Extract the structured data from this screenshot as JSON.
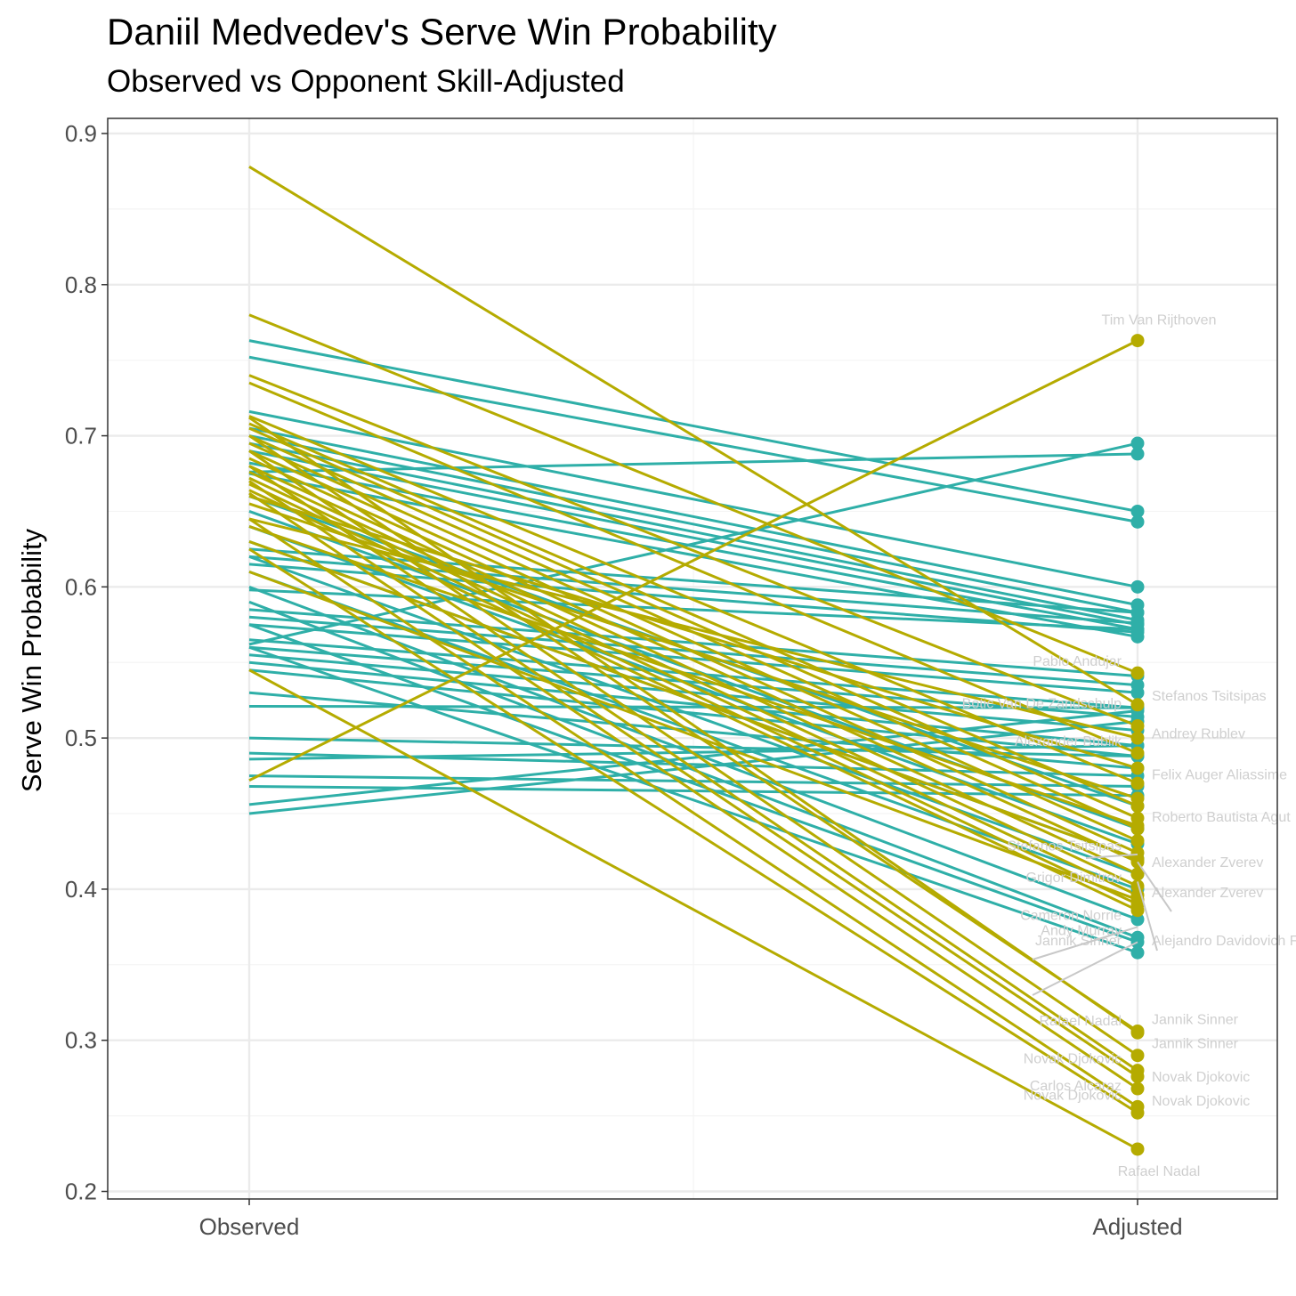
{
  "chart_data": {
    "type": "line",
    "title": "Daniil Medvedev's Serve Win Probability",
    "subtitle": "Observed vs Opponent Skill-Adjusted",
    "xlabel": "",
    "ylabel": "Serve Win Probability",
    "categories": [
      "Observed",
      "Adjusted"
    ],
    "ylim": [
      0.195,
      0.91
    ],
    "yticks": [
      "0.2",
      "0.3",
      "0.4",
      "0.5",
      "0.6",
      "0.7",
      "0.8",
      "0.9"
    ],
    "grid": true,
    "legend": "none",
    "colors": {
      "group_a": "#b5ab00",
      "group_b": "#2fafa8",
      "label": "#cfcfcf",
      "panel_border": "#333333",
      "grid_major": "#ebebeb",
      "grid_minor": "#f4f4f4"
    },
    "series": [
      {
        "name": "Tim Van Rijthoven",
        "group": "a",
        "values": [
          0.472,
          0.763
        ]
      },
      {
        "name": "g1",
        "group": "a",
        "values": [
          0.878,
          0.522
        ]
      },
      {
        "name": "g2",
        "group": "a",
        "values": [
          0.78,
          0.543
        ]
      },
      {
        "name": "g3",
        "group": "a",
        "values": [
          0.74,
          0.508
        ]
      },
      {
        "name": "g4",
        "group": "a",
        "values": [
          0.735,
          0.49
        ]
      },
      {
        "name": "g5",
        "group": "a",
        "values": [
          0.713,
          0.47
        ]
      },
      {
        "name": "g6",
        "group": "a",
        "values": [
          0.708,
          0.455
        ]
      },
      {
        "name": "g7",
        "group": "a",
        "values": [
          0.705,
          0.447
        ]
      },
      {
        "name": "g8",
        "group": "a",
        "values": [
          0.7,
          0.44
        ]
      },
      {
        "name": "g9",
        "group": "a",
        "values": [
          0.695,
          0.432
        ]
      },
      {
        "name": "g10",
        "group": "a",
        "values": [
          0.69,
          0.424
        ]
      },
      {
        "name": "g11",
        "group": "a",
        "values": [
          0.685,
          0.418
        ]
      },
      {
        "name": "g12",
        "group": "a",
        "values": [
          0.68,
          0.41
        ]
      },
      {
        "name": "g13",
        "group": "a",
        "values": [
          0.676,
          0.402
        ]
      },
      {
        "name": "g14",
        "group": "a",
        "values": [
          0.672,
          0.396
        ]
      },
      {
        "name": "g15",
        "group": "a",
        "values": [
          0.668,
          0.39
        ]
      },
      {
        "name": "g16",
        "group": "a",
        "values": [
          0.664,
          0.386
        ]
      },
      {
        "name": "g17",
        "group": "a",
        "values": [
          0.66,
          0.48
        ]
      },
      {
        "name": "g18",
        "group": "a",
        "values": [
          0.655,
          0.46
        ]
      },
      {
        "name": "g19",
        "group": "a",
        "values": [
          0.645,
          0.5
        ]
      },
      {
        "name": "g20",
        "group": "a",
        "values": [
          0.64,
          0.442
        ]
      },
      {
        "name": "g21",
        "group": "a",
        "values": [
          0.63,
          0.42
        ]
      },
      {
        "name": "Rafael Nadal (1)",
        "group": "a",
        "values": [
          0.712,
          0.305
        ]
      },
      {
        "name": "Jannik Sinner",
        "group": "a",
        "values": [
          0.7,
          0.306
        ]
      },
      {
        "name": "Novak Djokovic",
        "group": "a",
        "values": [
          0.69,
          0.29
        ]
      },
      {
        "name": "Jannik Sinner (2)",
        "group": "a",
        "values": [
          0.68,
          0.28
        ]
      },
      {
        "name": "Novak Djokovic (2)",
        "group": "a",
        "values": [
          0.67,
          0.276
        ]
      },
      {
        "name": "Carlos Alcaraz",
        "group": "a",
        "values": [
          0.662,
          0.268
        ]
      },
      {
        "name": "Novak Djokovic (3)",
        "group": "a",
        "values": [
          0.645,
          0.256
        ]
      },
      {
        "name": "Novak Djokovic (4)",
        "group": "a",
        "values": [
          0.625,
          0.252
        ]
      },
      {
        "name": "Rafael Nadal",
        "group": "a",
        "values": [
          0.545,
          0.228
        ]
      },
      {
        "name": "Alejandro Davidovich Fokina",
        "group": "a",
        "values": [
          0.61,
          0.393
        ]
      },
      {
        "name": "t1",
        "group": "b",
        "values": [
          0.763,
          0.65
        ]
      },
      {
        "name": "t2",
        "group": "b",
        "values": [
          0.752,
          0.643
        ]
      },
      {
        "name": "t3",
        "group": "b",
        "values": [
          0.676,
          0.688
        ]
      },
      {
        "name": "t4",
        "group": "b",
        "values": [
          0.562,
          0.695
        ]
      },
      {
        "name": "t5",
        "group": "b",
        "values": [
          0.716,
          0.6
        ]
      },
      {
        "name": "t6",
        "group": "b",
        "values": [
          0.705,
          0.588
        ]
      },
      {
        "name": "t7",
        "group": "b",
        "values": [
          0.7,
          0.583
        ]
      },
      {
        "name": "t8",
        "group": "b",
        "values": [
          0.695,
          0.578
        ]
      },
      {
        "name": "t9",
        "group": "b",
        "values": [
          0.69,
          0.575
        ]
      },
      {
        "name": "t10",
        "group": "b",
        "values": [
          0.682,
          0.572
        ]
      },
      {
        "name": "t11",
        "group": "b",
        "values": [
          0.675,
          0.567
        ]
      },
      {
        "name": "t12",
        "group": "b",
        "values": [
          0.625,
          0.583
        ]
      },
      {
        "name": "t13",
        "group": "b",
        "values": [
          0.62,
          0.576
        ]
      },
      {
        "name": "t14",
        "group": "b",
        "values": [
          0.615,
          0.57
        ]
      },
      {
        "name": "t15",
        "group": "b",
        "values": [
          0.598,
          0.572
        ]
      },
      {
        "name": "t16",
        "group": "b",
        "values": [
          0.585,
          0.541
        ]
      },
      {
        "name": "t17",
        "group": "b",
        "values": [
          0.58,
          0.535
        ]
      },
      {
        "name": "t18",
        "group": "b",
        "values": [
          0.575,
          0.53
        ]
      },
      {
        "name": "t19",
        "group": "b",
        "values": [
          0.565,
          0.52
        ]
      },
      {
        "name": "t20",
        "group": "b",
        "values": [
          0.56,
          0.514
        ]
      },
      {
        "name": "t21",
        "group": "b",
        "values": [
          0.555,
          0.505
        ]
      },
      {
        "name": "t22",
        "group": "b",
        "values": [
          0.55,
          0.495
        ]
      },
      {
        "name": "t23",
        "group": "b",
        "values": [
          0.545,
          0.488
        ]
      },
      {
        "name": "t24",
        "group": "b",
        "values": [
          0.53,
          0.48
        ]
      },
      {
        "name": "t25",
        "group": "b",
        "values": [
          0.521,
          0.52
        ]
      },
      {
        "name": "t26",
        "group": "b",
        "values": [
          0.5,
          0.488
        ]
      },
      {
        "name": "t27",
        "group": "b",
        "values": [
          0.49,
          0.475
        ]
      },
      {
        "name": "t28",
        "group": "b",
        "values": [
          0.486,
          0.495
        ]
      },
      {
        "name": "t29",
        "group": "b",
        "values": [
          0.475,
          0.468
        ]
      },
      {
        "name": "t30",
        "group": "b",
        "values": [
          0.468,
          0.462
        ]
      },
      {
        "name": "t31",
        "group": "b",
        "values": [
          0.456,
          0.518
        ]
      },
      {
        "name": "t32",
        "group": "b",
        "values": [
          0.45,
          0.511
        ]
      },
      {
        "name": "t33",
        "group": "b",
        "values": [
          0.66,
          0.455
        ]
      },
      {
        "name": "t34",
        "group": "b",
        "values": [
          0.65,
          0.44
        ]
      },
      {
        "name": "t35",
        "group": "b",
        "values": [
          0.64,
          0.43
        ]
      },
      {
        "name": "t36",
        "group": "b",
        "values": [
          0.63,
          0.42
        ]
      },
      {
        "name": "t37",
        "group": "b",
        "values": [
          0.62,
          0.41
        ]
      },
      {
        "name": "t38",
        "group": "b",
        "values": [
          0.61,
          0.4
        ]
      },
      {
        "name": "t39",
        "group": "b",
        "values": [
          0.6,
          0.38
        ]
      },
      {
        "name": "t40",
        "group": "b",
        "values": [
          0.59,
          0.368
        ]
      },
      {
        "name": "t41",
        "group": "b",
        "values": [
          0.575,
          0.365
        ]
      },
      {
        "name": "t42",
        "group": "b",
        "values": [
          0.56,
          0.358
        ]
      }
    ],
    "annotations": [
      {
        "text": "Tim Van Rijthoven",
        "y": 0.763,
        "side": "right"
      },
      {
        "text": "Pablo Andujar",
        "y": 0.543,
        "side": "left"
      },
      {
        "text": "Stefanos Tsitsipas",
        "y": 0.52,
        "side": "right"
      },
      {
        "text": "Botic Van De Zandschulp",
        "y": 0.515,
        "side": "left"
      },
      {
        "text": "Andrey Rublev",
        "y": 0.495,
        "side": "right"
      },
      {
        "text": "Alexander Bublik",
        "y": 0.49,
        "side": "left"
      },
      {
        "text": "Felix Auger Aliassime",
        "y": 0.468,
        "side": "right"
      },
      {
        "text": "Roberto Bautista Agut",
        "y": 0.44,
        "side": "right"
      },
      {
        "text": "Stefanos Tsitsipas",
        "y": 0.421,
        "side": "left"
      },
      {
        "text": "Alexander Zverev",
        "y": 0.41,
        "side": "right"
      },
      {
        "text": "Grigor Dimitrov",
        "y": 0.4,
        "side": "left"
      },
      {
        "text": "Alexander Zverev",
        "y": 0.39,
        "side": "right"
      },
      {
        "text": "Cameron Norrie",
        "y": 0.375,
        "side": "left"
      },
      {
        "text": "Andy Murray",
        "y": 0.365,
        "side": "left"
      },
      {
        "text": "Alejandro Davidovich Fokina",
        "y": 0.358,
        "side": "right"
      },
      {
        "text": "Jannik Sinner",
        "y": 0.358,
        "side": "left"
      },
      {
        "text": "Jannik Sinner",
        "y": 0.306,
        "side": "right"
      },
      {
        "text": "Rafael Nadal",
        "y": 0.305,
        "side": "left"
      },
      {
        "text": "Jannik Sinner",
        "y": 0.29,
        "side": "right"
      },
      {
        "text": "Novak Djokovic",
        "y": 0.28,
        "side": "left"
      },
      {
        "text": "Novak Djokovic",
        "y": 0.268,
        "side": "right"
      },
      {
        "text": "Carlos Alcaraz",
        "y": 0.262,
        "side": "left"
      },
      {
        "text": "Novak Djokovic",
        "y": 0.256,
        "side": "left"
      },
      {
        "text": "Novak Djokovic",
        "y": 0.252,
        "side": "right"
      },
      {
        "text": "Rafael Nadal",
        "y": 0.228,
        "side": "right"
      }
    ]
  }
}
